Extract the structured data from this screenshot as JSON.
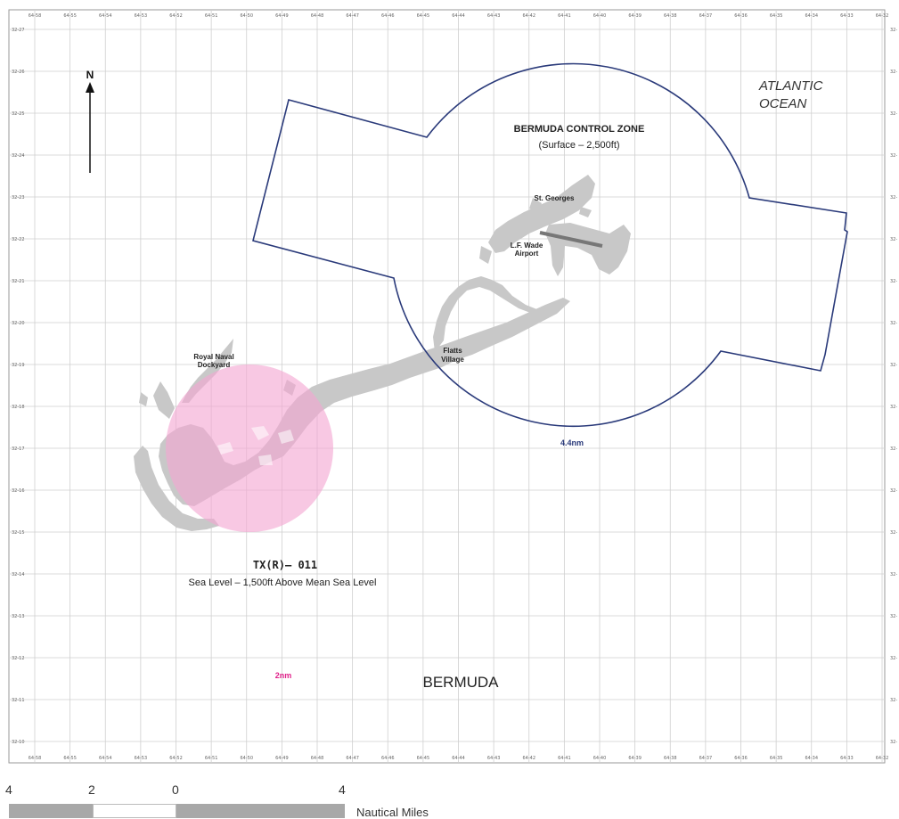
{
  "labels": {
    "ocean_line1": "ATLANTIC",
    "ocean_line2": "OCEAN",
    "control_zone_title": "BERMUDA CONTROL ZONE",
    "control_zone_alt": "(Surface – 2,500ft)",
    "st_georges": "St. Georges",
    "airport_line1": "L.F. Wade",
    "airport_line2": "Airport",
    "flatts_line1": "Flatts",
    "flatts_line2": "Village",
    "dockyard_line1": "Royal Naval",
    "dockyard_line2": "Dockyard",
    "control_zone_radius": "4.4nm",
    "restricted_id": "TX(R)– 011",
    "restricted_alt": "Sea Level – 1,500ft Above Mean Sea Level",
    "restricted_radius": "2nm",
    "region": "BERMUDA",
    "north": "N"
  },
  "grid": {
    "top_ticks": [
      "64-58",
      "64-55",
      "64-54",
      "64-53",
      "64-52",
      "64-51",
      "64-50",
      "64-49",
      "64-48",
      "64-47",
      "64-46",
      "64-45",
      "64-44",
      "64-43",
      "64-42",
      "64-41",
      "64-40",
      "64-39",
      "64-38",
      "64-37",
      "64-36",
      "64-35",
      "64-34",
      "64-33",
      "64-32"
    ],
    "bottom_ticks": [
      "64-58",
      "64-55",
      "64-54",
      "64-53",
      "64-52",
      "64-51",
      "64-50",
      "64-49",
      "64-48",
      "64-47",
      "64-46",
      "64-45",
      "64-44",
      "64-43",
      "64-42",
      "64-41",
      "64-40",
      "64-39",
      "64-38",
      "64-37",
      "64-36",
      "64-35",
      "64-34",
      "64-33",
      "64-32"
    ],
    "left_ticks": [
      "32-27",
      "32-26",
      "32-25",
      "32-24",
      "32-23",
      "32-22",
      "32-21",
      "32-20",
      "32-19",
      "32-18",
      "32-17",
      "32-16",
      "32-15",
      "32-14",
      "32-13",
      "32-12",
      "32-11",
      "32-10"
    ],
    "right_ticks": [
      "32-",
      "32-",
      "32-",
      "32-",
      "32-",
      "32-",
      "32-",
      "32-",
      "32-",
      "32-",
      "32-",
      "32-",
      "32-",
      "32-",
      "32-",
      "32-",
      "32-",
      "32-"
    ]
  },
  "scale": {
    "numbers": [
      "4",
      "2",
      "0",
      "4"
    ],
    "units": "Nautical Miles"
  },
  "colors": {
    "land": "#c8c8c8",
    "control_zone": "#2a3a7a",
    "restricted_fill": "#f4a6d2",
    "restricted_label": "#e0218a",
    "runway": "#777777",
    "grid": "#cfcfcf"
  }
}
